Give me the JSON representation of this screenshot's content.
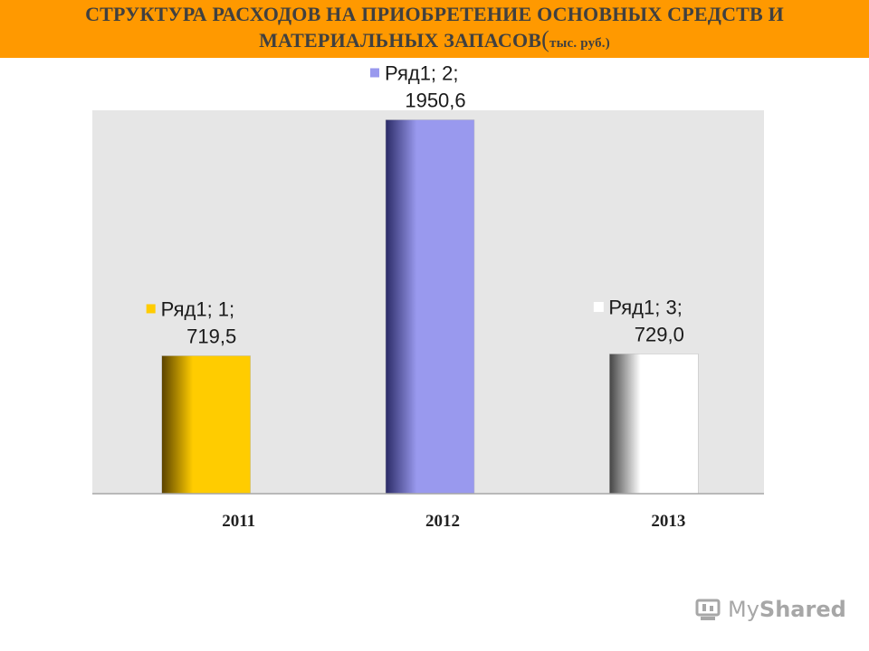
{
  "title": {
    "line1": "СТРУКТУРА РАСХОДОВ НА ПРИОБРЕТЕНИЕ ОСНОВНЫХ СРЕДСТВ И",
    "line2": "МАТЕРИАЛЬНЫХ ЗАПАСОВ",
    "paren_open": "(",
    "unit": "тыс. руб.",
    "paren_close": ")"
  },
  "watermark": {
    "part1": "My",
    "part2": "Shared"
  },
  "colors": {
    "title_bar": "#ff9900",
    "plot_bg": "#e6e6e6",
    "bar_2011": "#ffcc00",
    "bar_2012": "#9999ee",
    "bar_2013": "#ffffff"
  },
  "chart_data": {
    "type": "bar",
    "categories": [
      "2011",
      "2012",
      "2013"
    ],
    "series": [
      {
        "name": "Ряд1",
        "values": [
          719.5,
          1950.6,
          729.0
        ]
      }
    ],
    "data_labels": [
      {
        "line1": "Ряд1; 1;",
        "line2": "719,5"
      },
      {
        "line1": "Ряд1; 2;",
        "line2": "1950,6"
      },
      {
        "line1": "Ряд1; 3;",
        "line2": "729,0"
      }
    ],
    "grid": false,
    "legend": "none",
    "ylim": [
      0,
      2000
    ]
  }
}
